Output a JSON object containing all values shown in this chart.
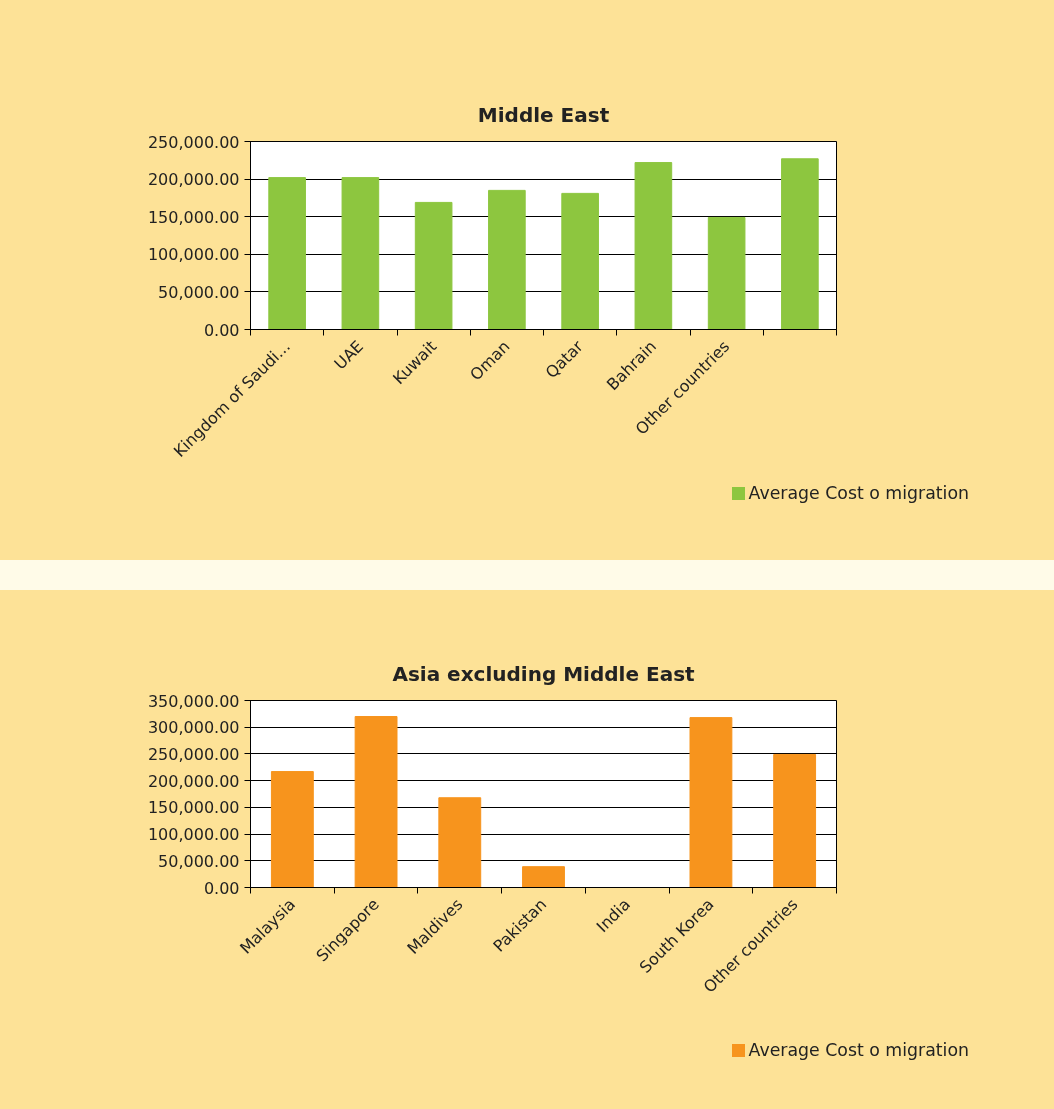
{
  "chart_data": [
    {
      "type": "bar",
      "title": "Middle East",
      "categories": [
        "Kingdom of Saudi...",
        "UAE",
        "Kuwait",
        "Oman",
        "Qatar",
        "Bahrain",
        "Other countries",
        null
      ],
      "series": [
        {
          "name": "Average Cost o migration",
          "color": "#8dc63f",
          "values": [
            202000,
            202000,
            169000,
            185000,
            181000,
            222000,
            149000,
            227000
          ]
        }
      ],
      "ylim": [
        0,
        250000
      ],
      "yticks": [
        {
          "value": 0,
          "label": "0.00"
        },
        {
          "value": 50000,
          "label": "50,000.00"
        },
        {
          "value": 100000,
          "label": "100,000.00"
        },
        {
          "value": 150000,
          "label": "150,000.00"
        },
        {
          "value": 200000,
          "label": "200,000.00"
        },
        {
          "value": 250000,
          "label": "250,000.00"
        }
      ],
      "grid": "y",
      "legend": "bottom right"
    },
    {
      "type": "bar",
      "title": "Asia excluding Middle East",
      "categories": [
        "Malaysia",
        "Singapore",
        "Maldives",
        "Pakistan",
        "India",
        "South Korea",
        "Other countries"
      ],
      "series": [
        {
          "name": "Average Cost o migration",
          "color": "#f7941d",
          "values": [
            217000,
            320000,
            168000,
            39000,
            0,
            318000,
            249000
          ]
        }
      ],
      "ylim": [
        0,
        350000
      ],
      "yticks": [
        {
          "value": 0,
          "label": "0.00"
        },
        {
          "value": 50000,
          "label": "50,000.00"
        },
        {
          "value": 100000,
          "label": "100,000.00"
        },
        {
          "value": 150000,
          "label": "150,000.00"
        },
        {
          "value": 200000,
          "label": "200,000.00"
        },
        {
          "value": 250000,
          "label": "250,000.00"
        },
        {
          "value": 300000,
          "label": "300,000.00"
        },
        {
          "value": 350000,
          "label": "350,000.00"
        }
      ],
      "grid": "y",
      "legend": "bottom right"
    }
  ]
}
